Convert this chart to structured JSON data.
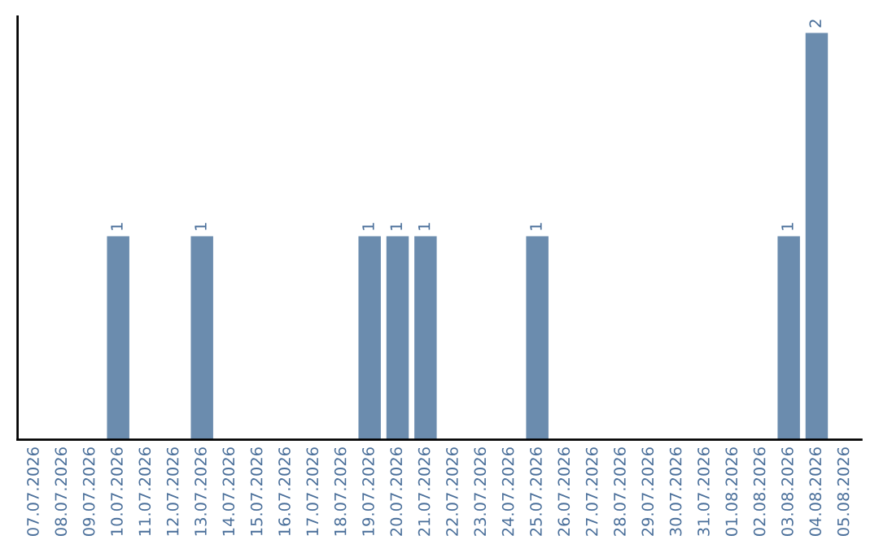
{
  "chart_data": {
    "type": "bar",
    "categories": [
      "07.07.2026",
      "08.07.2026",
      "09.07.2026",
      "10.07.2026",
      "11.07.2026",
      "12.07.2026",
      "13.07.2026",
      "14.07.2026",
      "15.07.2026",
      "16.07.2026",
      "17.07.2026",
      "18.07.2026",
      "19.07.2026",
      "20.07.2026",
      "21.07.2026",
      "22.07.2026",
      "23.07.2026",
      "24.07.2026",
      "25.07.2026",
      "26.07.2026",
      "27.07.2026",
      "28.07.2026",
      "29.07.2026",
      "30.07.2026",
      "31.07.2026",
      "01.08.2026",
      "02.08.2026",
      "03.08.2026",
      "04.08.2026",
      "05.08.2026"
    ],
    "values": [
      0,
      0,
      0,
      1,
      0,
      0,
      1,
      0,
      0,
      0,
      0,
      0,
      1,
      1,
      1,
      0,
      0,
      0,
      1,
      0,
      0,
      0,
      0,
      0,
      0,
      0,
      0,
      1,
      2,
      0
    ],
    "value_labels": [
      null,
      null,
      null,
      "1",
      null,
      null,
      "1",
      null,
      null,
      null,
      null,
      null,
      "1",
      "1",
      "1",
      null,
      null,
      null,
      "1",
      null,
      null,
      null,
      null,
      null,
      null,
      null,
      null,
      "1",
      "2",
      null
    ],
    "color": "#6b8cae",
    "grid": false,
    "legend": false
  }
}
